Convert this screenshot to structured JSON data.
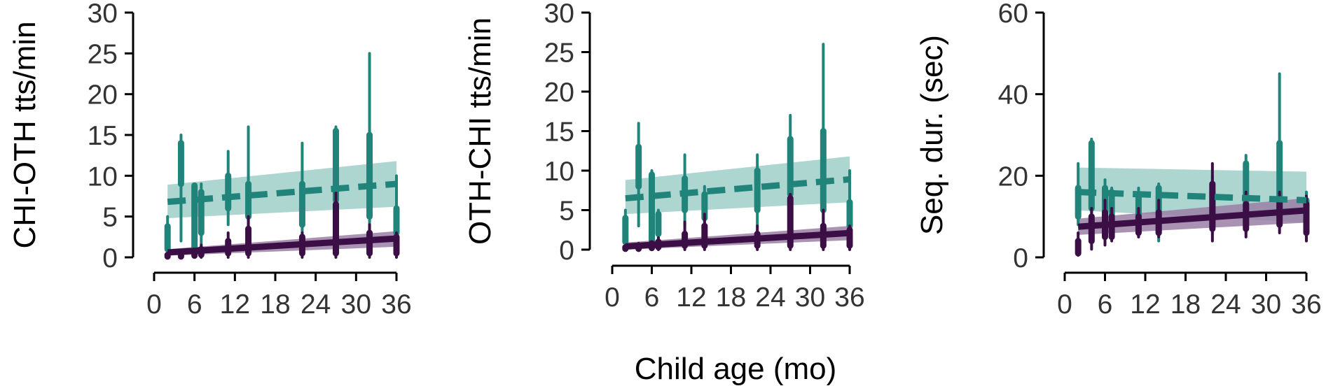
{
  "figure": {
    "shared_xlabel": "Child age (mo)",
    "colors": {
      "teal": "#21847A",
      "teal_band": "#9FCFC9",
      "purple": "#3B0F45",
      "purple_band": "#9B7FA6"
    }
  },
  "chart_data": [
    {
      "type": "line",
      "ylabel": "CHI-OTH tts/min",
      "xlabel": "",
      "xlim": [
        0,
        36
      ],
      "ylim": [
        0,
        30
      ],
      "x_ticks": [
        0,
        6,
        12,
        18,
        24,
        30,
        36
      ],
      "y_ticks": [
        0,
        5,
        10,
        15,
        20,
        25,
        30
      ],
      "series": [
        {
          "color": "teal",
          "dash": true,
          "fit": {
            "x": [
              2,
              36
            ],
            "y": [
              6.8,
              9.0
            ],
            "band_lo": [
              4.8,
              6.2
            ],
            "band_hi": [
              8.9,
              11.8
            ]
          },
          "ranges": [
            {
              "x": 2,
              "lo": 0.2,
              "hi": 5.0,
              "q1": 1.0,
              "q3": 3.8
            },
            {
              "x": 4,
              "lo": 2.0,
              "hi": 15.0,
              "q1": 9.0,
              "q3": 14.0
            },
            {
              "x": 6,
              "lo": 0.5,
              "hi": 9.0,
              "q1": 1.0,
              "q3": 8.8
            },
            {
              "x": 7,
              "lo": 1.5,
              "hi": 9.0,
              "q1": 3.0,
              "q3": 8.0
            },
            {
              "x": 11,
              "lo": 4.0,
              "hi": 13.0,
              "q1": 6.0,
              "q3": 10.0
            },
            {
              "x": 14,
              "lo": 3.0,
              "hi": 16.0,
              "q1": 5.0,
              "q3": 9.0
            },
            {
              "x": 22,
              "lo": 2.0,
              "hi": 14.0,
              "q1": 4.0,
              "q3": 9.0
            },
            {
              "x": 27,
              "lo": 5.0,
              "hi": 16.0,
              "q1": 7.0,
              "q3": 15.5
            },
            {
              "x": 32,
              "lo": 2.0,
              "hi": 25.0,
              "q1": 5.0,
              "q3": 15.0
            },
            {
              "x": 36,
              "lo": 2.0,
              "hi": 10.0,
              "q1": 3.0,
              "q3": 6.0
            }
          ]
        },
        {
          "color": "purple",
          "dash": false,
          "fit": {
            "x": [
              2,
              36
            ],
            "y": [
              0.6,
              2.3
            ],
            "band_lo": [
              0.2,
              1.3
            ],
            "band_hi": [
              1.0,
              3.2
            ]
          },
          "ranges": [
            {
              "x": 2,
              "lo": 0.0,
              "hi": 0.5,
              "q1": 0.1,
              "q3": 0.3
            },
            {
              "x": 4,
              "lo": 0.0,
              "hi": 0.8,
              "q1": 0.1,
              "q3": 0.5
            },
            {
              "x": 6,
              "lo": 0.0,
              "hi": 1.0,
              "q1": 0.2,
              "q3": 0.8
            },
            {
              "x": 7,
              "lo": 0.0,
              "hi": 1.5,
              "q1": 0.3,
              "q3": 1.0
            },
            {
              "x": 11,
              "lo": 0.0,
              "hi": 3.0,
              "q1": 0.5,
              "q3": 2.0
            },
            {
              "x": 14,
              "lo": 0.0,
              "hi": 5.0,
              "q1": 0.5,
              "q3": 3.5
            },
            {
              "x": 22,
              "lo": 0.0,
              "hi": 3.0,
              "q1": 0.5,
              "q3": 2.5
            },
            {
              "x": 27,
              "lo": 0.0,
              "hi": 8.0,
              "q1": 0.5,
              "q3": 6.5
            },
            {
              "x": 32,
              "lo": 0.0,
              "hi": 4.0,
              "q1": 0.5,
              "q3": 3.0
            },
            {
              "x": 36,
              "lo": 0.0,
              "hi": 3.0,
              "q1": 0.5,
              "q3": 2.5
            }
          ]
        }
      ]
    },
    {
      "type": "line",
      "ylabel": "OTH-CHI tts/min",
      "xlabel": "",
      "xlim": [
        0,
        36
      ],
      "ylim": [
        0,
        30
      ],
      "x_ticks": [
        0,
        6,
        12,
        18,
        24,
        30,
        36
      ],
      "y_ticks": [
        0,
        5,
        10,
        15,
        20,
        25,
        30
      ],
      "series": [
        {
          "color": "teal",
          "dash": true,
          "fit": {
            "x": [
              2,
              36
            ],
            "y": [
              6.5,
              8.9
            ],
            "band_lo": [
              4.5,
              6.0
            ],
            "band_hi": [
              8.8,
              11.8
            ]
          },
          "ranges": [
            {
              "x": 2,
              "lo": 0.2,
              "hi": 5.0,
              "q1": 1.0,
              "q3": 4.0
            },
            {
              "x": 4,
              "lo": 3.0,
              "hi": 16.0,
              "q1": 8.0,
              "q3": 13.0
            },
            {
              "x": 6,
              "lo": 0.5,
              "hi": 10.0,
              "q1": 1.0,
              "q3": 9.5
            },
            {
              "x": 7,
              "lo": 1.0,
              "hi": 5.0,
              "q1": 2.0,
              "q3": 4.5
            },
            {
              "x": 11,
              "lo": 3.0,
              "hi": 12.0,
              "q1": 5.0,
              "q3": 9.0
            },
            {
              "x": 14,
              "lo": 2.0,
              "hi": 8.0,
              "q1": 4.0,
              "q3": 7.0
            },
            {
              "x": 22,
              "lo": 3.0,
              "hi": 12.0,
              "q1": 5.0,
              "q3": 10.0
            },
            {
              "x": 27,
              "lo": 4.0,
              "hi": 17.0,
              "q1": 7.0,
              "q3": 14.0
            },
            {
              "x": 32,
              "lo": 3.0,
              "hi": 26.0,
              "q1": 5.0,
              "q3": 15.0
            },
            {
              "x": 36,
              "lo": 2.0,
              "hi": 10.0,
              "q1": 3.0,
              "q3": 6.0
            }
          ]
        },
        {
          "color": "purple",
          "dash": false,
          "fit": {
            "x": [
              2,
              36
            ],
            "y": [
              0.4,
              2.1
            ],
            "band_lo": [
              0.0,
              1.2
            ],
            "band_hi": [
              0.9,
              3.0
            ]
          },
          "ranges": [
            {
              "x": 2,
              "lo": 0.0,
              "hi": 0.5,
              "q1": 0.1,
              "q3": 0.3
            },
            {
              "x": 4,
              "lo": 0.0,
              "hi": 0.8,
              "q1": 0.1,
              "q3": 0.5
            },
            {
              "x": 6,
              "lo": 0.0,
              "hi": 1.0,
              "q1": 0.2,
              "q3": 0.8
            },
            {
              "x": 7,
              "lo": 0.0,
              "hi": 1.5,
              "q1": 0.3,
              "q3": 1.0
            },
            {
              "x": 11,
              "lo": 0.0,
              "hi": 3.5,
              "q1": 0.5,
              "q3": 2.0
            },
            {
              "x": 14,
              "lo": 0.0,
              "hi": 4.5,
              "q1": 0.5,
              "q3": 3.0
            },
            {
              "x": 22,
              "lo": 0.0,
              "hi": 3.0,
              "q1": 0.5,
              "q3": 2.0
            },
            {
              "x": 27,
              "lo": 0.0,
              "hi": 7.0,
              "q1": 0.5,
              "q3": 6.5
            },
            {
              "x": 32,
              "lo": 0.0,
              "hi": 5.0,
              "q1": 0.5,
              "q3": 3.0
            },
            {
              "x": 36,
              "lo": 0.0,
              "hi": 3.0,
              "q1": 0.5,
              "q3": 2.5
            }
          ]
        }
      ]
    },
    {
      "type": "line",
      "ylabel": "Seq. dur. (sec)",
      "xlabel": "",
      "xlim": [
        0,
        36
      ],
      "ylim": [
        0,
        60
      ],
      "x_ticks": [
        0,
        6,
        12,
        18,
        24,
        30,
        36
      ],
      "y_ticks": [
        0,
        20,
        40,
        60
      ],
      "series": [
        {
          "color": "teal",
          "dash": true,
          "fit": {
            "x": [
              2,
              36
            ],
            "y": [
              16.0,
              14.0
            ],
            "band_lo": [
              11.5,
              8.5
            ],
            "band_hi": [
              22.0,
              21.0
            ]
          },
          "ranges": [
            {
              "x": 2,
              "lo": 8.0,
              "hi": 23.0,
              "q1": 10.0,
              "q3": 17.0
            },
            {
              "x": 4,
              "lo": 7.0,
              "hi": 29.0,
              "q1": 12.0,
              "q3": 28.0
            },
            {
              "x": 6,
              "lo": 6.0,
              "hi": 19.0,
              "q1": 8.0,
              "q3": 17.0
            },
            {
              "x": 7,
              "lo": 5.0,
              "hi": 17.0,
              "q1": 7.0,
              "q3": 16.0
            },
            {
              "x": 11,
              "lo": 5.0,
              "hi": 17.0,
              "q1": 7.0,
              "q3": 15.0
            },
            {
              "x": 14,
              "lo": 4.0,
              "hi": 18.0,
              "q1": 6.0,
              "q3": 17.0
            },
            {
              "x": 22,
              "lo": 6.0,
              "hi": 20.0,
              "q1": 8.0,
              "q3": 16.0
            },
            {
              "x": 27,
              "lo": 6.0,
              "hi": 25.0,
              "q1": 8.0,
              "q3": 23.0
            },
            {
              "x": 32,
              "lo": 8.0,
              "hi": 45.0,
              "q1": 10.0,
              "q3": 28.0
            },
            {
              "x": 36,
              "lo": 5.0,
              "hi": 16.0,
              "q1": 7.0,
              "q3": 14.0
            }
          ]
        },
        {
          "color": "purple",
          "dash": false,
          "fit": {
            "x": [
              2,
              36
            ],
            "y": [
              7.5,
              11.5
            ],
            "band_lo": [
              5.5,
              8.5
            ],
            "band_hi": [
              9.5,
              14.5
            ]
          },
          "ranges": [
            {
              "x": 2,
              "lo": 0.5,
              "hi": 6.0,
              "q1": 1.0,
              "q3": 4.0
            },
            {
              "x": 4,
              "lo": 2.0,
              "hi": 12.0,
              "q1": 4.0,
              "q3": 10.0
            },
            {
              "x": 6,
              "lo": 3.0,
              "hi": 14.0,
              "q1": 5.0,
              "q3": 11.0
            },
            {
              "x": 7,
              "lo": 4.0,
              "hi": 12.0,
              "q1": 5.0,
              "q3": 10.0
            },
            {
              "x": 11,
              "lo": 5.0,
              "hi": 12.0,
              "q1": 6.0,
              "q3": 10.0
            },
            {
              "x": 14,
              "lo": 5.0,
              "hi": 14.0,
              "q1": 6.0,
              "q3": 11.0
            },
            {
              "x": 22,
              "lo": 4.0,
              "hi": 23.0,
              "q1": 7.0,
              "q3": 18.0
            },
            {
              "x": 27,
              "lo": 5.0,
              "hi": 16.0,
              "q1": 7.0,
              "q3": 13.0
            },
            {
              "x": 32,
              "lo": 6.0,
              "hi": 16.0,
              "q1": 8.0,
              "q3": 14.0
            },
            {
              "x": 36,
              "lo": 4.0,
              "hi": 15.0,
              "q1": 6.0,
              "q3": 13.0
            }
          ]
        }
      ]
    }
  ]
}
